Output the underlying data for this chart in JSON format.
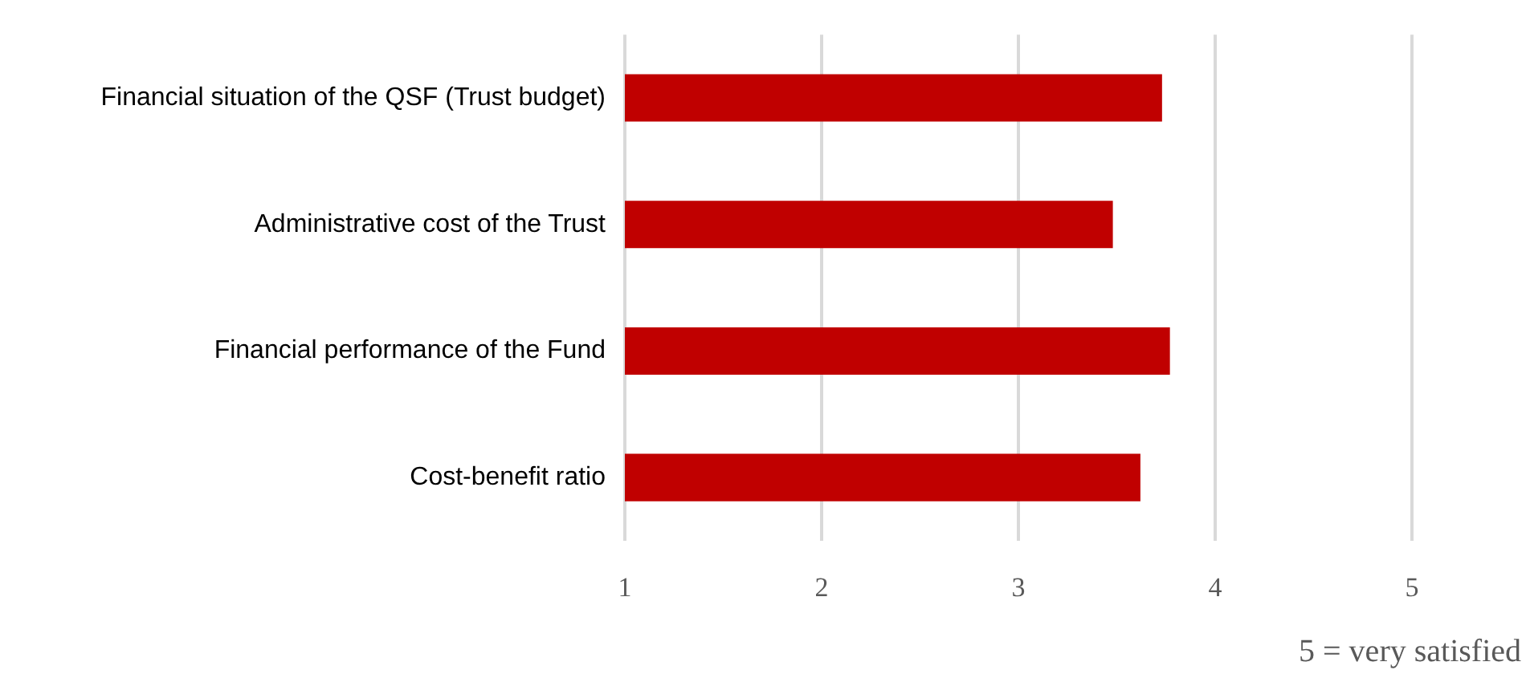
{
  "chart_data": {
    "type": "bar",
    "orientation": "horizontal",
    "categories": [
      "Financial situation of the QSF (Trust budget)",
      "Administrative cost of the Trust",
      "Financial performance of the Fund",
      "Cost-benefit ratio"
    ],
    "values": [
      3.73,
      3.48,
      3.77,
      3.62
    ],
    "color": "#c00000",
    "xlim": [
      1,
      5
    ],
    "xticks": [
      1,
      2,
      3,
      4,
      5
    ],
    "grid": "x",
    "annotations": [
      "5 = very satisfied"
    ]
  }
}
